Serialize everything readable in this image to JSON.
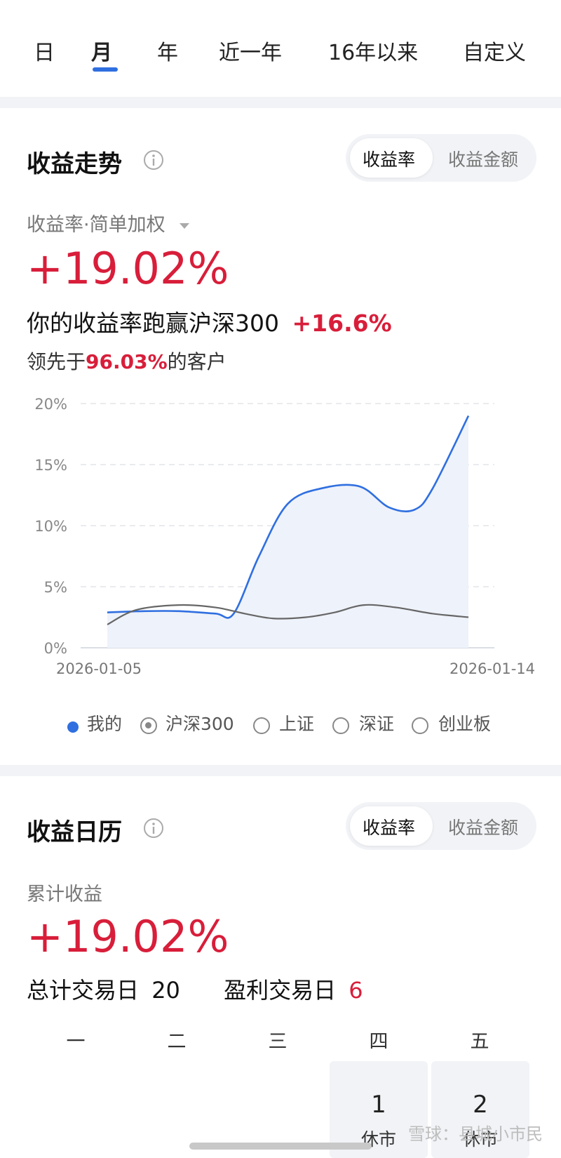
{
  "period_tabs": [
    "日",
    "月",
    "年",
    "近一年",
    "16年以来",
    "自定义"
  ],
  "active_tab_index": 1,
  "trend": {
    "title": "收益走势",
    "toggle": [
      "收益率",
      "收益金额"
    ],
    "mode_label": "收益率·简单加权",
    "return_pct": "+19.02%",
    "beat_text": "你的收益率跑赢沪深300",
    "beat_value": "+16.6%",
    "lead_prefix": "领先于",
    "lead_value": "96.03%",
    "lead_suffix": "的客户"
  },
  "chart_data": {
    "type": "area",
    "y_ticks": [
      "20%",
      "15%",
      "10%",
      "5%",
      "0%"
    ],
    "x_labels": [
      "2026-01-05",
      "2026-01-14"
    ],
    "ylim": [
      0,
      20
    ],
    "grid": true,
    "series": [
      {
        "name": "我的",
        "color": "#2f6fe0",
        "fill": true,
        "x": [
          0,
          0.1,
          0.2,
          0.3,
          0.35,
          0.42,
          0.5,
          0.6,
          0.7,
          0.78,
          0.85,
          0.9,
          1.0
        ],
        "y": [
          2.9,
          3.0,
          3.0,
          2.8,
          2.8,
          7.5,
          11.8,
          13.1,
          13.2,
          11.5,
          11.3,
          13.0,
          19.0
        ]
      },
      {
        "name": "沪深300",
        "color": "#666666",
        "fill": false,
        "x": [
          0,
          0.08,
          0.2,
          0.3,
          0.38,
          0.46,
          0.55,
          0.63,
          0.71,
          0.8,
          0.9,
          1.0
        ],
        "y": [
          1.9,
          3.1,
          3.5,
          3.3,
          2.8,
          2.4,
          2.5,
          2.9,
          3.5,
          3.3,
          2.8,
          2.5
        ]
      }
    ]
  },
  "legend": [
    {
      "label": "我的",
      "kind": "dot"
    },
    {
      "label": "沪深300",
      "kind": "radio-on"
    },
    {
      "label": "上证",
      "kind": "radio"
    },
    {
      "label": "深证",
      "kind": "radio"
    },
    {
      "label": "创业板",
      "kind": "radio"
    }
  ],
  "calendar": {
    "title": "收益日历",
    "toggle": [
      "收益率",
      "收益金额"
    ],
    "cum_label": "累计收益",
    "return_pct": "+19.02%",
    "total_days_label": "总计交易日",
    "total_days": "20",
    "profit_days_label": "盈利交易日",
    "profit_days": "6",
    "weekdays": [
      "一",
      "二",
      "三",
      "四",
      "五"
    ],
    "days": [
      {
        "num": "1",
        "label": "休市"
      },
      {
        "num": "2",
        "label": "休市"
      }
    ]
  },
  "watermark": "雪球：县城小市民",
  "colors": {
    "accent": "#2f6fe0",
    "gain": "#d81e3a"
  }
}
